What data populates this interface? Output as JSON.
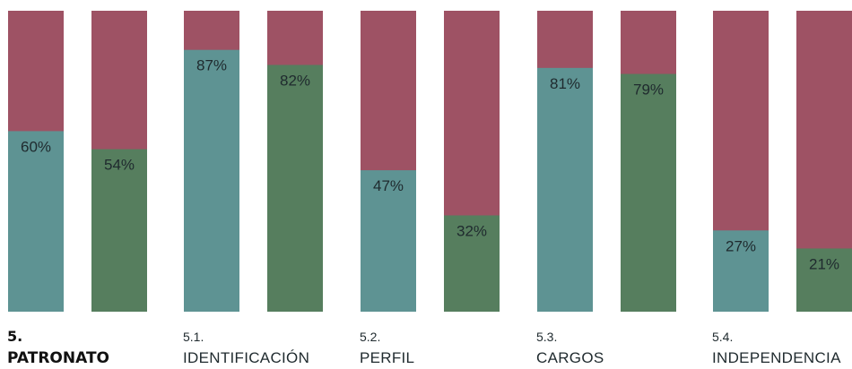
{
  "chart_data": {
    "type": "bar",
    "stacked": true,
    "ylim": [
      0,
      100
    ],
    "colors": {
      "background": "#9e5264",
      "series_1": "#5e9393",
      "series_2": "#567e5e"
    },
    "groups": [
      {
        "number": "5.",
        "title": "PATRONATO",
        "bold": true,
        "values": [
          60,
          54
        ],
        "labels": [
          "60%",
          "54%"
        ]
      },
      {
        "number": "5.1.",
        "title": "IDENTIFICACIÓN",
        "bold": false,
        "values": [
          87,
          82
        ],
        "labels": [
          "87%",
          "82%"
        ]
      },
      {
        "number": "5.2.",
        "title": "PERFIL",
        "bold": false,
        "values": [
          47,
          32
        ],
        "labels": [
          "47%",
          "32%"
        ]
      },
      {
        "number": "5.3.",
        "title": "CARGOS",
        "bold": false,
        "values": [
          81,
          79
        ],
        "labels": [
          "81%",
          "79%"
        ]
      },
      {
        "number": "5.4.",
        "title": "INDEPENDENCIA",
        "bold": false,
        "values": [
          27,
          21
        ],
        "labels": [
          "27%",
          "21%"
        ]
      }
    ]
  }
}
